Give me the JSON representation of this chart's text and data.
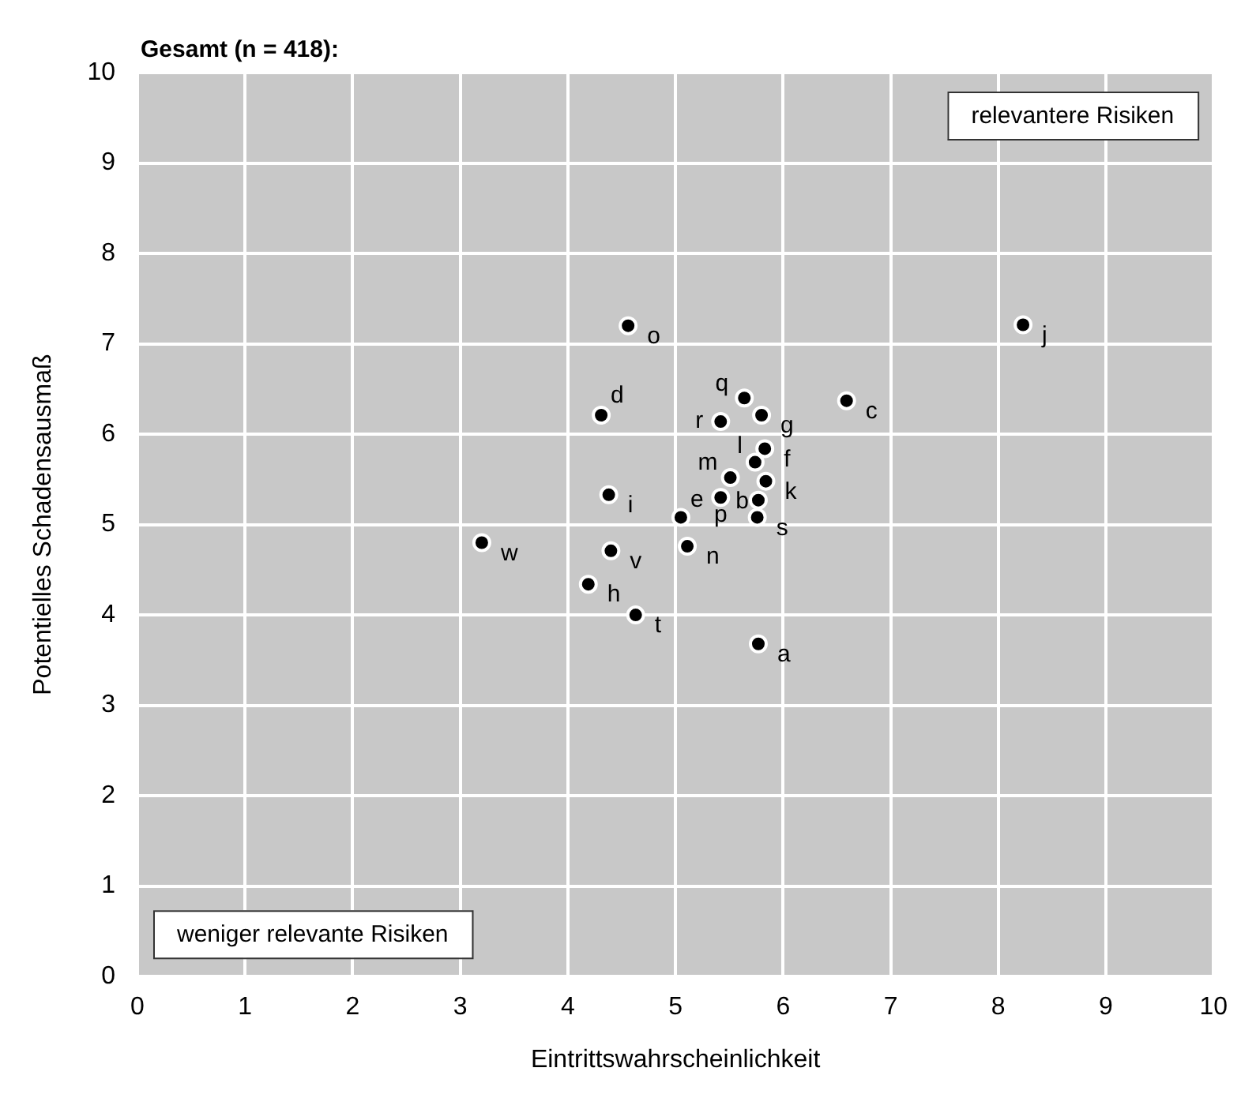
{
  "chart_data": {
    "type": "scatter",
    "title": "Gesamt (n = 418):",
    "xlabel": "Eintrittswahrscheinlichkeit",
    "ylabel": "Potentielles Schadensausmaß",
    "x": [
      5.77,
      5.77,
      6.59,
      4.31,
      5.05,
      5.83,
      5.8,
      4.19,
      4.38,
      8.23,
      5.84,
      5.74,
      5.51,
      5.11,
      4.56,
      5.42,
      5.64,
      5.42,
      5.76,
      4.63,
      4.4,
      3.2
    ],
    "series": [
      {
        "color": "#000000",
        "values": [
          3.68,
          5.27,
          6.37,
          6.21,
          5.08,
          5.84,
          6.21,
          4.34,
          5.33,
          7.21,
          5.48,
          5.69,
          5.52,
          4.76,
          7.2,
          5.3,
          6.4,
          6.14,
          5.08,
          4.0,
          4.71,
          4.8
        ]
      }
    ],
    "xlim": [
      0,
      10
    ],
    "ylim": [
      0,
      10
    ],
    "xticks": [
      0,
      1,
      2,
      3,
      4,
      5,
      6,
      7,
      8,
      9,
      10
    ],
    "yticks": [
      0,
      1,
      2,
      3,
      4,
      5,
      6,
      7,
      8,
      9,
      10
    ],
    "grid": true,
    "legend": false,
    "marker": "circle",
    "annotations": [
      {
        "text": "a",
        "x": 5.77,
        "y": 3.68
      },
      {
        "text": "b",
        "x": 5.77,
        "y": 5.27
      },
      {
        "text": "c",
        "x": 6.59,
        "y": 6.37
      },
      {
        "text": "d",
        "x": 4.31,
        "y": 6.21
      },
      {
        "text": "e",
        "x": 5.05,
        "y": 5.08
      },
      {
        "text": "f",
        "x": 5.83,
        "y": 5.84
      },
      {
        "text": "g",
        "x": 5.8,
        "y": 6.21
      },
      {
        "text": "h",
        "x": 4.19,
        "y": 4.34
      },
      {
        "text": "i",
        "x": 4.38,
        "y": 5.33
      },
      {
        "text": "j",
        "x": 8.23,
        "y": 7.21
      },
      {
        "text": "k",
        "x": 5.84,
        "y": 5.48
      },
      {
        "text": "l",
        "x": 5.74,
        "y": 5.69
      },
      {
        "text": "m",
        "x": 5.51,
        "y": 5.52
      },
      {
        "text": "n",
        "x": 5.11,
        "y": 4.76
      },
      {
        "text": "o",
        "x": 4.56,
        "y": 7.2
      },
      {
        "text": "p",
        "x": 5.42,
        "y": 5.3
      },
      {
        "text": "q",
        "x": 5.64,
        "y": 6.4
      },
      {
        "text": "r",
        "x": 5.42,
        "y": 6.14
      },
      {
        "text": "s",
        "x": 5.76,
        "y": 5.08
      },
      {
        "text": "t",
        "x": 4.63,
        "y": 4.0
      },
      {
        "text": "v",
        "x": 4.4,
        "y": 4.71
      },
      {
        "text": "w",
        "x": 3.2,
        "y": 4.8
      },
      "relevantere Risiken",
      "weniger relevante Risiken"
    ]
  }
}
